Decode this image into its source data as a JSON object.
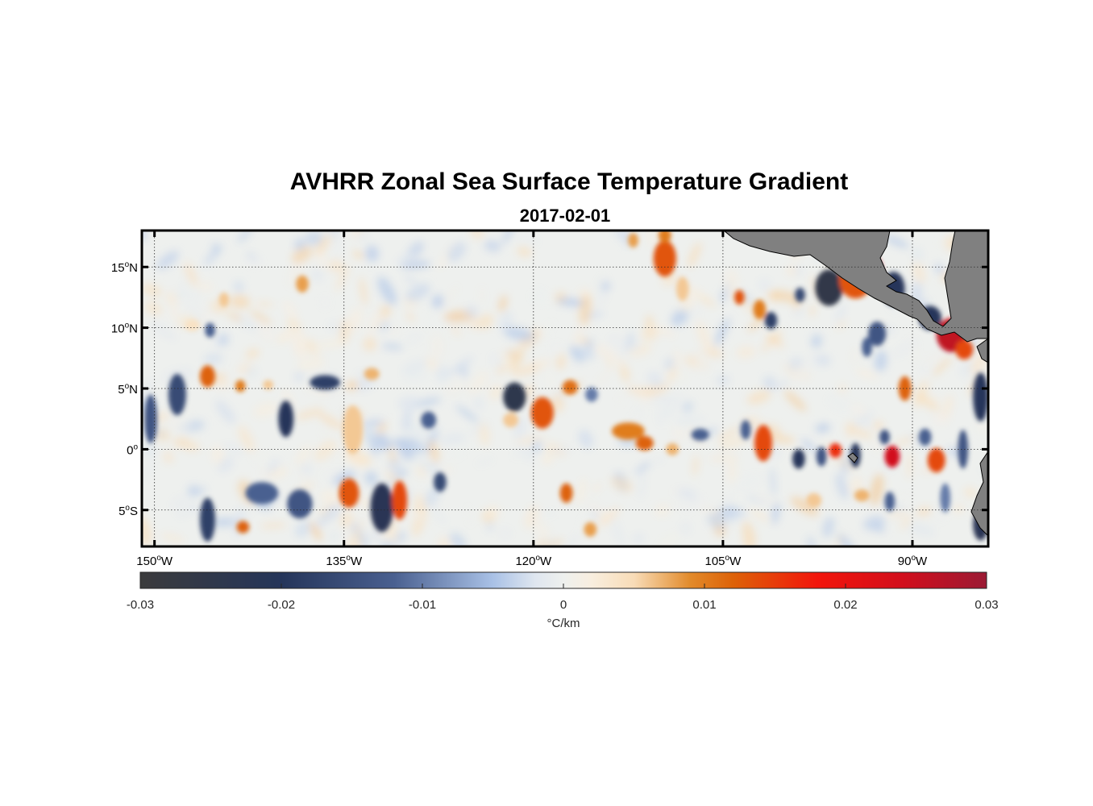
{
  "chart_data": {
    "type": "heatmap",
    "title": "AVHRR Zonal Sea Surface Temperature Gradient",
    "subtitle": "2017-02-01",
    "xlim": [
      -151,
      -84
    ],
    "ylim": [
      -8,
      18
    ],
    "x_ticks": [
      {
        "value": -150,
        "deg": "150",
        "unit": "o",
        "hemi": "W"
      },
      {
        "value": -135,
        "deg": "135",
        "unit": "o",
        "hemi": "W"
      },
      {
        "value": -120,
        "deg": "120",
        "unit": "o",
        "hemi": "W"
      },
      {
        "value": -105,
        "deg": "105",
        "unit": "o",
        "hemi": "W"
      },
      {
        "value": -90,
        "deg": "90",
        "unit": "o",
        "hemi": "W"
      }
    ],
    "y_ticks": [
      {
        "value": 15,
        "deg": "15",
        "unit": "o",
        "hemi": "N"
      },
      {
        "value": 10,
        "deg": "10",
        "unit": "o",
        "hemi": "N"
      },
      {
        "value": 5,
        "deg": "5",
        "unit": "o",
        "hemi": "N"
      },
      {
        "value": 0,
        "deg": "0",
        "unit": "o",
        "hemi": ""
      },
      {
        "value": -5,
        "deg": "5",
        "unit": "o",
        "hemi": "S"
      }
    ],
    "grid": true,
    "colorbar": {
      "location": "bottom",
      "range": [
        -0.03,
        0.03
      ],
      "ticks": [
        {
          "value": -0.03,
          "label": "-0.03"
        },
        {
          "value": -0.02,
          "label": "-0.02"
        },
        {
          "value": -0.01,
          "label": "-0.01"
        },
        {
          "value": 0,
          "label": "0"
        },
        {
          "value": 0.01,
          "label": "0.01"
        },
        {
          "value": 0.02,
          "label": "0.02"
        },
        {
          "value": 0.03,
          "label": "0.03"
        }
      ],
      "label": "°C/km",
      "colormap": [
        {
          "v": -0.03,
          "c": "#3b3b3c"
        },
        {
          "v": -0.02,
          "c": "#25355a"
        },
        {
          "v": -0.012,
          "c": "#4a6090"
        },
        {
          "v": -0.005,
          "c": "#a9c1e6"
        },
        {
          "v": -0.002,
          "c": "#dfe6ef"
        },
        {
          "v": 0,
          "c": "#eef0ee"
        },
        {
          "v": 0.002,
          "c": "#f8eedf"
        },
        {
          "v": 0.005,
          "c": "#f8dcb7"
        },
        {
          "v": 0.009,
          "c": "#e28a2a"
        },
        {
          "v": 0.012,
          "c": "#dd6208"
        },
        {
          "v": 0.018,
          "c": "#f2150b"
        },
        {
          "v": 0.024,
          "c": "#d20e1c"
        },
        {
          "v": 0.03,
          "c": "#9b1a34"
        }
      ]
    },
    "colors": {
      "land": "#808080",
      "land_outline": "#000000",
      "frame": "#000000"
    },
    "features": [
      {
        "lon": -144.5,
        "lat": 12.3,
        "v": 0.006,
        "rlon": 0.4,
        "rlat": 0.6
      },
      {
        "lon": -138.3,
        "lat": 13.6,
        "v": 0.008,
        "rlon": 0.5,
        "rlat": 0.7
      },
      {
        "lon": -147.0,
        "lat": 10.2,
        "v": 0.004,
        "rlon": 0.6,
        "rlat": 0.5
      },
      {
        "lon": -145.6,
        "lat": 9.8,
        "v": -0.012,
        "rlon": 0.4,
        "rlat": 0.6
      },
      {
        "lon": -148.2,
        "lat": 4.5,
        "v": -0.016,
        "rlon": 0.7,
        "rlat": 1.7
      },
      {
        "lon": -150.3,
        "lat": 2.5,
        "v": -0.014,
        "rlon": 0.5,
        "rlat": 2.0
      },
      {
        "lon": -145.8,
        "lat": 6.0,
        "v": 0.012,
        "rlon": 0.6,
        "rlat": 0.9
      },
      {
        "lon": -143.2,
        "lat": 5.2,
        "v": 0.01,
        "rlon": 0.4,
        "rlat": 0.5
      },
      {
        "lon": -141.0,
        "lat": 5.3,
        "v": 0.006,
        "rlon": 0.4,
        "rlat": 0.4
      },
      {
        "lon": -136.5,
        "lat": 5.5,
        "v": -0.018,
        "rlon": 1.2,
        "rlat": 0.6
      },
      {
        "lon": -139.6,
        "lat": 2.5,
        "v": -0.02,
        "rlon": 0.6,
        "rlat": 1.5
      },
      {
        "lon": -134.3,
        "lat": 1.6,
        "v": 0.006,
        "rlon": 0.8,
        "rlat": 2.0
      },
      {
        "lon": -132.8,
        "lat": 6.2,
        "v": 0.007,
        "rlon": 0.6,
        "rlat": 0.5
      },
      {
        "lon": -141.5,
        "lat": -3.6,
        "v": -0.012,
        "rlon": 1.3,
        "rlat": 0.9
      },
      {
        "lon": -138.5,
        "lat": -4.5,
        "v": -0.014,
        "rlon": 1.0,
        "rlat": 1.2
      },
      {
        "lon": -145.8,
        "lat": -5.8,
        "v": -0.018,
        "rlon": 0.6,
        "rlat": 1.8
      },
      {
        "lon": -143.0,
        "lat": -6.4,
        "v": 0.012,
        "rlon": 0.5,
        "rlat": 0.5
      },
      {
        "lon": -134.6,
        "lat": -3.6,
        "v": 0.013,
        "rlon": 0.8,
        "rlat": 1.2
      },
      {
        "lon": -132.0,
        "lat": -4.8,
        "v": -0.022,
        "rlon": 0.9,
        "rlat": 2.0
      },
      {
        "lon": -130.6,
        "lat": -4.2,
        "v": 0.014,
        "rlon": 0.6,
        "rlat": 1.6
      },
      {
        "lon": -127.4,
        "lat": -2.7,
        "v": -0.016,
        "rlon": 0.5,
        "rlat": 0.8
      },
      {
        "lon": -128.3,
        "lat": 2.4,
        "v": -0.012,
        "rlon": 0.6,
        "rlat": 0.7
      },
      {
        "lon": -121.5,
        "lat": 4.3,
        "v": -0.024,
        "rlon": 0.9,
        "rlat": 1.2
      },
      {
        "lon": -119.3,
        "lat": 3.0,
        "v": 0.013,
        "rlon": 0.9,
        "rlat": 1.3
      },
      {
        "lon": -121.8,
        "lat": 2.4,
        "v": 0.006,
        "rlon": 0.6,
        "rlat": 0.6
      },
      {
        "lon": -117.1,
        "lat": 5.1,
        "v": 0.011,
        "rlon": 0.6,
        "rlat": 0.6
      },
      {
        "lon": -115.4,
        "lat": 4.5,
        "v": -0.01,
        "rlon": 0.5,
        "rlat": 0.6
      },
      {
        "lon": -112.5,
        "lat": 1.5,
        "v": 0.01,
        "rlon": 1.3,
        "rlat": 0.7
      },
      {
        "lon": -111.2,
        "lat": 0.5,
        "v": 0.012,
        "rlon": 0.7,
        "rlat": 0.6
      },
      {
        "lon": -109.0,
        "lat": 0.0,
        "v": 0.007,
        "rlon": 0.5,
        "rlat": 0.5
      },
      {
        "lon": -106.8,
        "lat": 1.2,
        "v": -0.012,
        "rlon": 0.7,
        "rlat": 0.5
      },
      {
        "lon": -117.4,
        "lat": -3.6,
        "v": 0.012,
        "rlon": 0.5,
        "rlat": 0.8
      },
      {
        "lon": -115.5,
        "lat": -6.6,
        "v": 0.008,
        "rlon": 0.5,
        "rlat": 0.6
      },
      {
        "lon": -109.6,
        "lat": 15.7,
        "v": 0.013,
        "rlon": 0.9,
        "rlat": 1.5
      },
      {
        "lon": -108.2,
        "lat": 13.2,
        "v": 0.006,
        "rlon": 0.5,
        "rlat": 1.0
      },
      {
        "lon": -109.6,
        "lat": 17.6,
        "v": 0.01,
        "rlon": 0.5,
        "rlat": 0.6
      },
      {
        "lon": -112.1,
        "lat": 17.2,
        "v": 0.008,
        "rlon": 0.4,
        "rlat": 0.6
      },
      {
        "lon": -103.7,
        "lat": 12.5,
        "v": 0.013,
        "rlon": 0.4,
        "rlat": 0.6
      },
      {
        "lon": -102.1,
        "lat": 11.5,
        "v": 0.01,
        "rlon": 0.5,
        "rlat": 0.8
      },
      {
        "lon": -101.2,
        "lat": 10.6,
        "v": -0.018,
        "rlon": 0.5,
        "rlat": 0.7
      },
      {
        "lon": -98.9,
        "lat": 12.7,
        "v": -0.016,
        "rlon": 0.4,
        "rlat": 0.6
      },
      {
        "lon": -96.6,
        "lat": 13.3,
        "v": -0.026,
        "rlon": 1.1,
        "rlat": 1.5
      },
      {
        "lon": -94.5,
        "lat": 13.9,
        "v": 0.013,
        "rlon": 1.3,
        "rlat": 1.5
      },
      {
        "lon": -93.3,
        "lat": 14.8,
        "v": 0.026,
        "rlon": 0.9,
        "rlat": 1.2
      },
      {
        "lon": -91.5,
        "lat": 13.2,
        "v": -0.02,
        "rlon": 0.9,
        "rlat": 1.4
      },
      {
        "lon": -92.8,
        "lat": 9.5,
        "v": -0.014,
        "rlon": 0.7,
        "rlat": 1.0
      },
      {
        "lon": -93.6,
        "lat": 8.4,
        "v": -0.012,
        "rlon": 0.4,
        "rlat": 0.8
      },
      {
        "lon": -88.6,
        "lat": 10.8,
        "v": -0.02,
        "rlon": 0.9,
        "rlat": 1.0
      },
      {
        "lon": -86.9,
        "lat": 9.4,
        "v": 0.026,
        "rlon": 1.2,
        "rlat": 1.4
      },
      {
        "lon": -85.9,
        "lat": 8.2,
        "v": 0.014,
        "rlon": 0.7,
        "rlat": 0.8
      },
      {
        "lon": -90.6,
        "lat": 5.0,
        "v": 0.012,
        "rlon": 0.5,
        "rlat": 1.0
      },
      {
        "lon": -91.6,
        "lat": -0.6,
        "v": 0.024,
        "rlon": 0.6,
        "rlat": 0.9
      },
      {
        "lon": -92.2,
        "lat": 1.0,
        "v": -0.014,
        "rlon": 0.4,
        "rlat": 0.6
      },
      {
        "lon": -94.5,
        "lat": -0.5,
        "v": -0.02,
        "rlon": 0.4,
        "rlat": 1.0
      },
      {
        "lon": -96.1,
        "lat": -0.1,
        "v": 0.016,
        "rlon": 0.5,
        "rlat": 0.6
      },
      {
        "lon": -97.2,
        "lat": -0.6,
        "v": -0.014,
        "rlon": 0.4,
        "rlat": 0.8
      },
      {
        "lon": -99.0,
        "lat": -0.8,
        "v": -0.02,
        "rlon": 0.5,
        "rlat": 0.8
      },
      {
        "lon": -101.8,
        "lat": 0.5,
        "v": 0.014,
        "rlon": 0.7,
        "rlat": 1.5
      },
      {
        "lon": -103.2,
        "lat": 1.6,
        "v": -0.012,
        "rlon": 0.4,
        "rlat": 0.8
      },
      {
        "lon": -89.0,
        "lat": 1.0,
        "v": -0.012,
        "rlon": 0.5,
        "rlat": 0.7
      },
      {
        "lon": -88.1,
        "lat": -0.9,
        "v": 0.014,
        "rlon": 0.7,
        "rlat": 1.0
      },
      {
        "lon": -86.0,
        "lat": 0.0,
        "v": -0.014,
        "rlon": 0.4,
        "rlat": 1.6
      },
      {
        "lon": -84.6,
        "lat": 4.3,
        "v": -0.02,
        "rlon": 0.6,
        "rlat": 2.0
      },
      {
        "lon": -84.6,
        "lat": -6.2,
        "v": -0.022,
        "rlon": 0.6,
        "rlat": 1.3
      },
      {
        "lon": -87.4,
        "lat": -4.0,
        "v": -0.01,
        "rlon": 0.4,
        "rlat": 1.2
      },
      {
        "lon": -91.8,
        "lat": -4.3,
        "v": -0.012,
        "rlon": 0.4,
        "rlat": 0.8
      },
      {
        "lon": -94.0,
        "lat": -3.8,
        "v": 0.007,
        "rlon": 0.6,
        "rlat": 0.5
      },
      {
        "lon": -97.8,
        "lat": -4.2,
        "v": 0.006,
        "rlon": 0.6,
        "rlat": 0.6
      }
    ]
  }
}
